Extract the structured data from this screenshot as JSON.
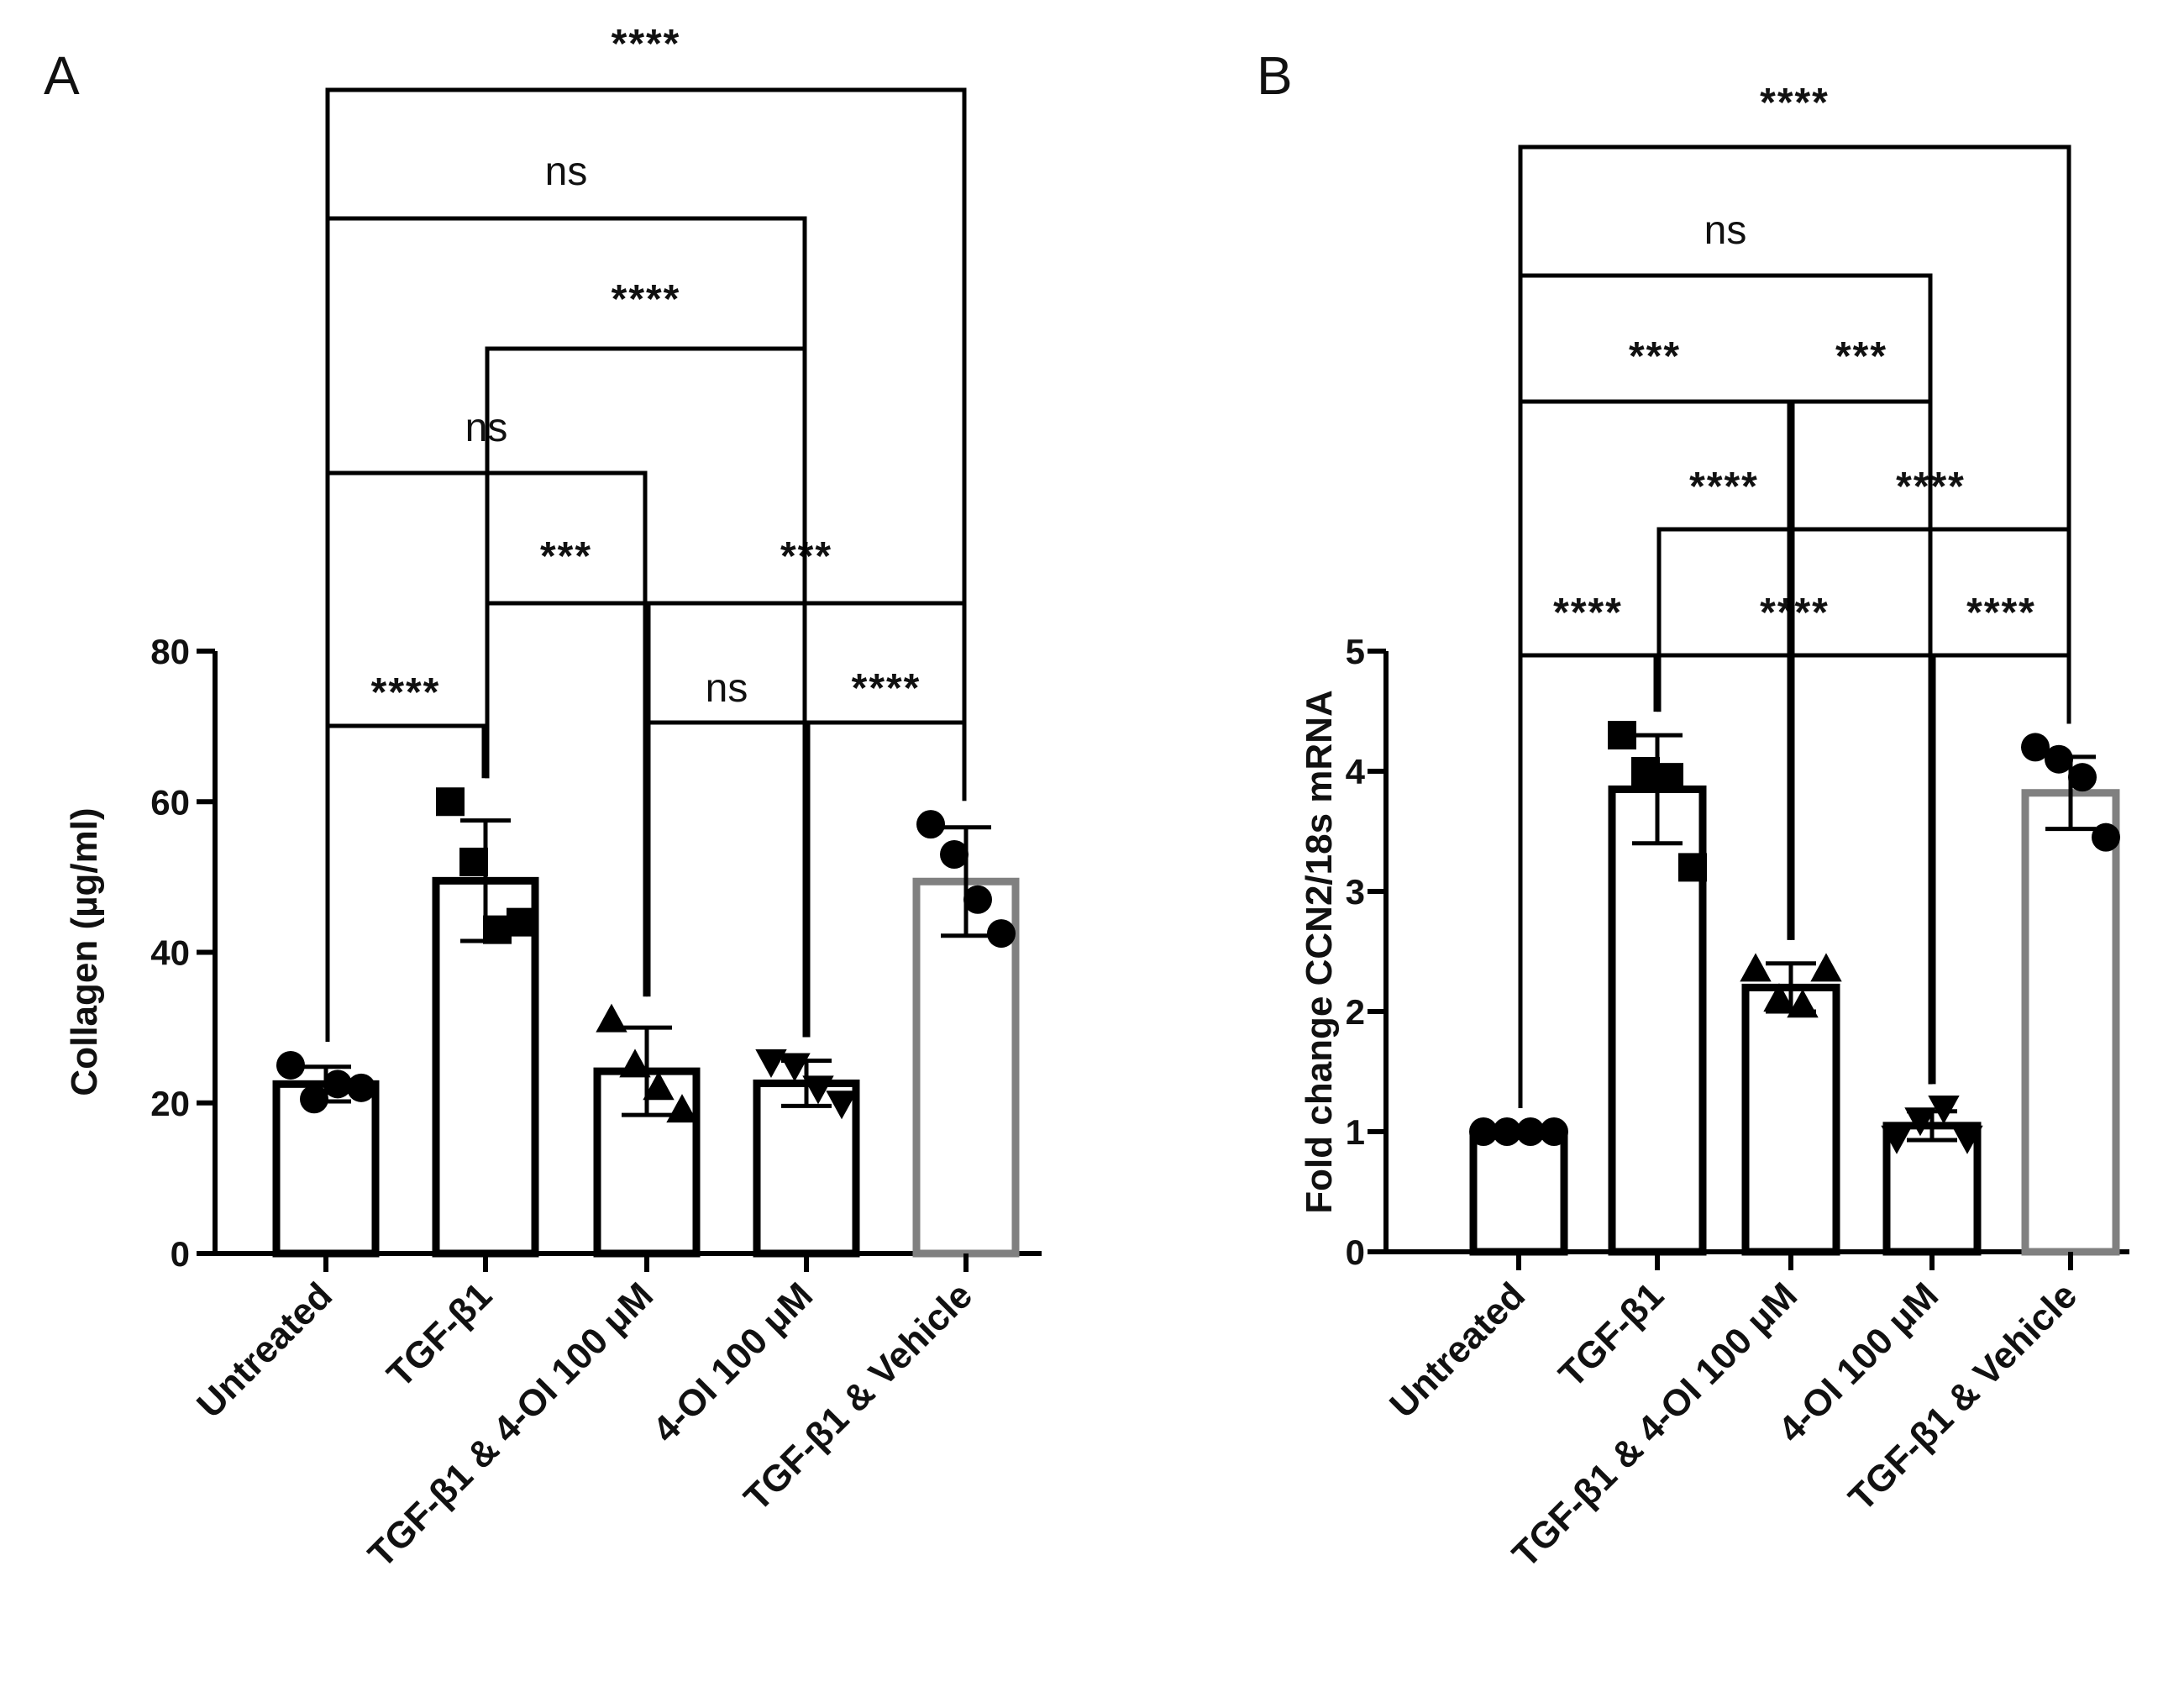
{
  "chart_data": [
    {
      "panel": "A",
      "type": "bar",
      "title": "",
      "xlabel": "",
      "ylabel": "Collagen (µg/ml)",
      "ylim": [
        0,
        80
      ],
      "yticks": [
        "0",
        "20",
        "40",
        "60",
        "80"
      ],
      "categories": [
        "Untreated",
        "TGF-β1",
        "TGF-β1 & 4-OI 100 μM",
        "4-OI 100 μM",
        "TGF-β1 & Vehicle"
      ],
      "bar_colors": [
        "#000000",
        "#000000",
        "#000000",
        "#000000",
        "#808080"
      ],
      "markers": [
        "circle",
        "square",
        "triangle-up",
        "triangle-down",
        "circle"
      ],
      "means": [
        22.5,
        49.5,
        24.2,
        22.6,
        49.4
      ],
      "sd": [
        2.3,
        8.0,
        5.8,
        3.0,
        7.2
      ],
      "points": [
        [
          25,
          20.5,
          22.5,
          22
        ],
        [
          60,
          52,
          43,
          44
        ],
        [
          31,
          25,
          22,
          19
        ],
        [
          25.5,
          25,
          22,
          20
        ],
        [
          57,
          53,
          47,
          42.5
        ]
      ],
      "comparisons": [
        {
          "from": 0,
          "to": 1,
          "label": "****"
        },
        {
          "from": 1,
          "to": 2,
          "label": "***"
        },
        {
          "from": 2,
          "to": 3,
          "label": "ns"
        },
        {
          "from": 3,
          "to": 4,
          "label": "****"
        },
        {
          "from": 2,
          "to": 4,
          "label": "***"
        },
        {
          "from": 0,
          "to": 2,
          "label": "ns"
        },
        {
          "from": 1,
          "to": 3,
          "label": "****"
        },
        {
          "from": 0,
          "to": 3,
          "label": "ns"
        },
        {
          "from": 0,
          "to": 4,
          "label": "****"
        }
      ]
    },
    {
      "panel": "B",
      "type": "bar",
      "title": "",
      "xlabel": "",
      "ylabel": "Fold change CCN2/18s mRNA",
      "ylim": [
        0,
        5
      ],
      "yticks": [
        "0",
        "1",
        "2",
        "3",
        "4",
        "5"
      ],
      "categories": [
        "Untreated",
        "TGF-β1",
        "TGF-β1 & 4-OI 100 μM",
        "4-OI 100 μM",
        "TGF-β1 & Vehicle"
      ],
      "bar_colors": [
        "#000000",
        "#000000",
        "#000000",
        "#000000",
        "#808080"
      ],
      "markers": [
        "circle",
        "square",
        "triangle-up",
        "triangle-down",
        "circle"
      ],
      "means": [
        1.0,
        3.85,
        2.2,
        1.05,
        3.82
      ],
      "sd": [
        0.0,
        0.45,
        0.2,
        0.12,
        0.3
      ],
      "points": [
        [
          1,
          1,
          1,
          1
        ],
        [
          4.3,
          4,
          3.95,
          3.2
        ],
        [
          2.35,
          2.1,
          2.05,
          2.35
        ],
        [
          0.95,
          1.1,
          1.2,
          0.95
        ],
        [
          4.2,
          4.1,
          3.95,
          3.45
        ]
      ],
      "comparisons": [
        {
          "from": 0,
          "to": 1,
          "label": "****"
        },
        {
          "from": 1,
          "to": 3,
          "label": "****"
        },
        {
          "from": 3,
          "to": 4,
          "label": "****"
        },
        {
          "from": 1,
          "to": 2,
          "label": "****"
        },
        {
          "from": 2,
          "to": 4,
          "label": "****"
        },
        {
          "from": 0,
          "to": 2,
          "label": "***"
        },
        {
          "from": 2,
          "to": 3,
          "label": "***"
        },
        {
          "from": 0,
          "to": 3,
          "label": "ns"
        },
        {
          "from": 0,
          "to": 4,
          "label": "****"
        }
      ]
    }
  ]
}
